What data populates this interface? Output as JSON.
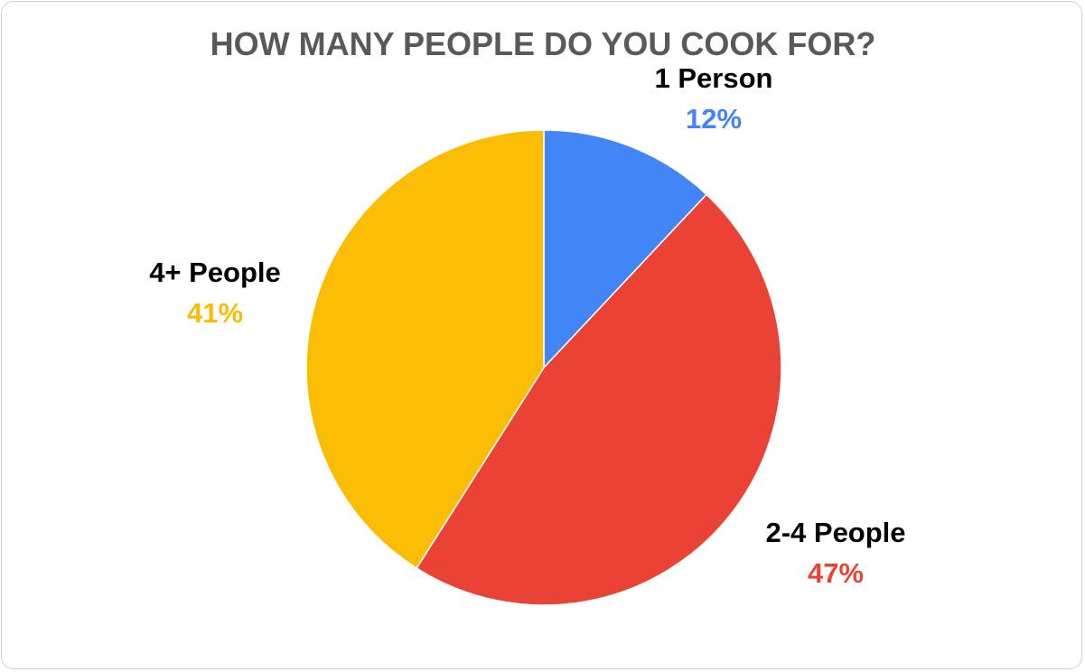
{
  "chart_data": {
    "type": "pie",
    "title": "HOW MANY PEOPLE DO YOU COOK FOR?",
    "start_angle_deg": 0,
    "direction": "clockwise",
    "legend": "none",
    "slices": [
      {
        "name": "1 Person",
        "value": 12,
        "label": "12%",
        "color": "#4285f4"
      },
      {
        "name": "2-4 People",
        "value": 47,
        "label": "47%",
        "color": "#ea4335"
      },
      {
        "name": "4+ People",
        "value": 41,
        "label": "41%",
        "color": "#fbbc04"
      }
    ]
  }
}
